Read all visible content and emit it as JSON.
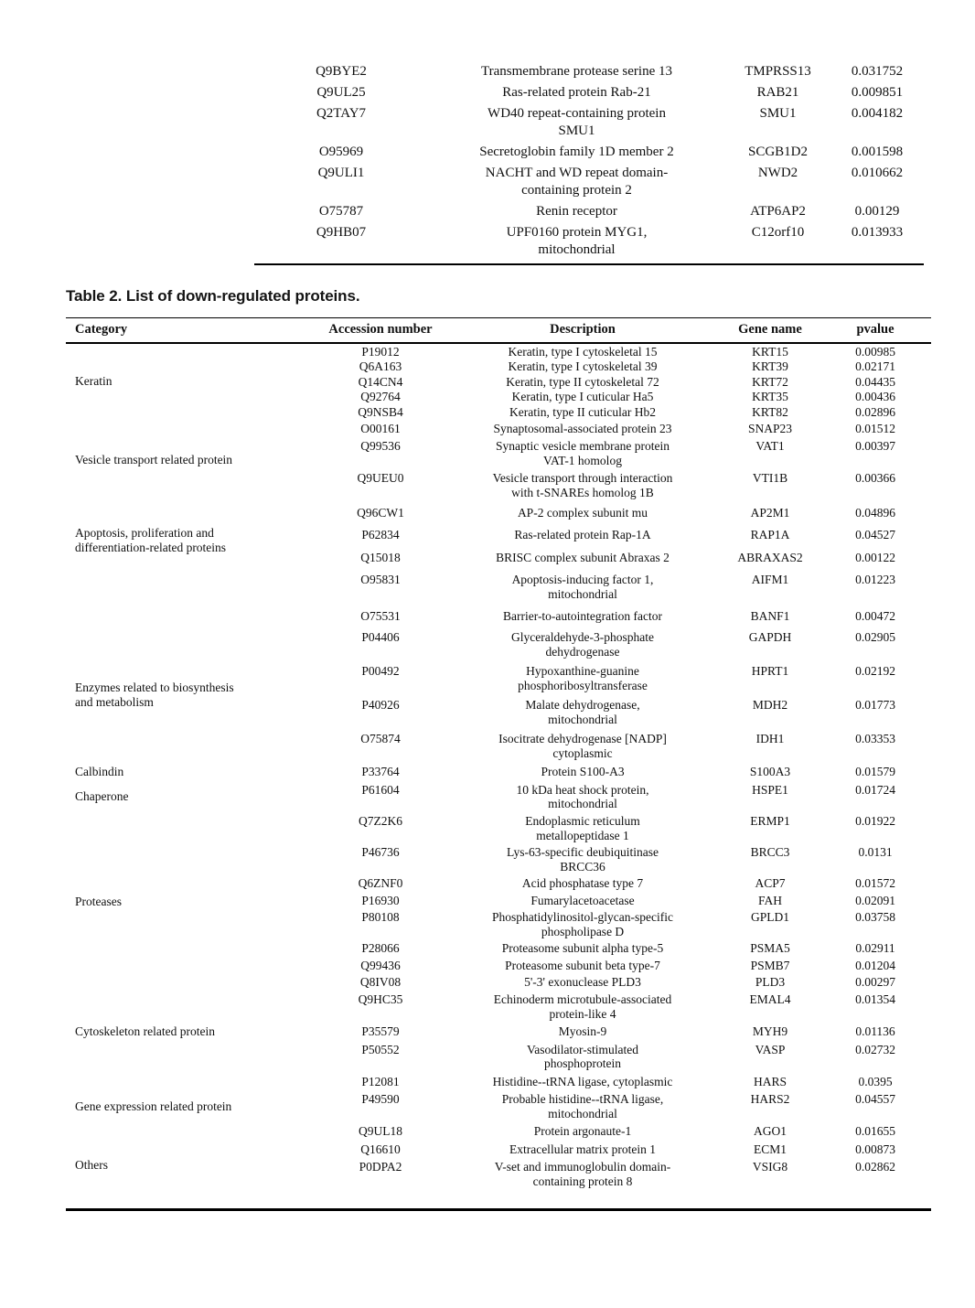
{
  "table1_continuation": {
    "rows": [
      {
        "accession": "Q9BYE2",
        "description": "Transmembrane protease serine 13",
        "gene": "TMPRSS13",
        "pvalue": "0.031752"
      },
      {
        "accession": "Q9UL25",
        "description": "Ras-related protein Rab-21",
        "gene": "RAB21",
        "pvalue": "0.009851"
      },
      {
        "accession": "Q2TAY7",
        "description": "WD40 repeat-containing protein\nSMU1",
        "gene": "SMU1",
        "pvalue": "0.004182"
      },
      {
        "accession": "O95969",
        "description": "Secretoglobin family 1D member 2",
        "gene": "SCGB1D2",
        "pvalue": "0.001598"
      },
      {
        "accession": "Q9ULI1",
        "description": "NACHT and WD repeat domain-\ncontaining protein 2",
        "gene": "NWD2",
        "pvalue": "0.010662"
      },
      {
        "accession": "O75787",
        "description": "Renin receptor",
        "gene": "ATP6AP2",
        "pvalue": "0.00129"
      },
      {
        "accession": "Q9HB07",
        "description": "UPF0160 protein MYG1,\nmitochondrial",
        "gene": "C12orf10",
        "pvalue": "0.013933"
      }
    ]
  },
  "table2": {
    "title": "Table 2. List of down-regulated proteins.",
    "columns": [
      "Category",
      "Accession number",
      "Description",
      "Gene name",
      "pvalue"
    ],
    "groups": [
      {
        "category": "Keratin",
        "rows": [
          {
            "accession": "P19012",
            "description": "Keratin, type I cytoskeletal 15",
            "gene": "KRT15",
            "pvalue": "0.00985"
          },
          {
            "accession": "Q6A163",
            "description": "Keratin, type I cytoskeletal 39",
            "gene": "KRT39",
            "pvalue": "0.02171"
          },
          {
            "accession": "Q14CN4",
            "description": "Keratin, type II cytoskeletal 72",
            "gene": "KRT72",
            "pvalue": "0.04435"
          },
          {
            "accession": "Q92764",
            "description": "Keratin, type I cuticular Ha5",
            "gene": "KRT35",
            "pvalue": "0.00436"
          },
          {
            "accession": "Q9NSB4",
            "description": "Keratin, type II cuticular Hb2",
            "gene": "KRT82",
            "pvalue": "0.02896"
          }
        ]
      },
      {
        "category": "Vesicle transport related protein",
        "rows": [
          {
            "accession": "O00161",
            "description": "Synaptosomal-associated protein 23",
            "gene": "SNAP23",
            "pvalue": "0.01512"
          },
          {
            "accession": "Q99536",
            "description": "Synaptic vesicle membrane protein\nVAT-1 homolog",
            "gene": "VAT1",
            "pvalue": "0.00397"
          },
          {
            "accession": "Q9UEU0",
            "description": "Vesicle transport through interaction\nwith t-SNAREs homolog 1B",
            "gene": "VTI1B",
            "pvalue": "0.00366"
          }
        ]
      },
      {
        "category": "Apoptosis, proliferation and\ndifferentiation-related proteins",
        "rows": [
          {
            "accession": "Q96CW1",
            "description": "AP-2 complex subunit mu",
            "gene": "AP2M1",
            "pvalue": "0.04896"
          },
          {
            "accession": "P62834",
            "description": "Ras-related protein Rap-1A",
            "gene": "RAP1A",
            "pvalue": "0.04527"
          },
          {
            "accession": "Q15018",
            "description": "BRISC complex subunit Abraxas 2",
            "gene": "ABRAXAS2",
            "pvalue": "0.00122"
          },
          {
            "accession": "O95831",
            "description": "Apoptosis-inducing factor 1,\nmitochondrial",
            "gene": "AIFM1",
            "pvalue": "0.01223"
          },
          {
            "accession": "O75531",
            "description": "Barrier-to-autointegration factor",
            "gene": "BANF1",
            "pvalue": "0.00472"
          }
        ]
      },
      {
        "category": "Enzymes related to biosynthesis\nand metabolism",
        "rows": [
          {
            "accession": "P04406",
            "description": "Glyceraldehyde-3-phosphate\ndehydrogenase",
            "gene": "GAPDH",
            "pvalue": "0.02905"
          },
          {
            "accession": "P00492",
            "description": "Hypoxanthine-guanine\nphosphoribosyltransferase",
            "gene": "HPRT1",
            "pvalue": "0.02192"
          },
          {
            "accession": "P40926",
            "description": "Malate dehydrogenase,\nmitochondrial",
            "gene": "MDH2",
            "pvalue": "0.01773"
          },
          {
            "accession": "O75874",
            "description": "Isocitrate dehydrogenase [NADP]\ncytoplasmic",
            "gene": "IDH1",
            "pvalue": "0.03353"
          }
        ]
      },
      {
        "category": "Calbindin",
        "rows": [
          {
            "accession": "P33764",
            "description": "Protein S100-A3",
            "gene": "S100A3",
            "pvalue": "0.01579"
          }
        ]
      },
      {
        "category": "Chaperone",
        "rows": [
          {
            "accession": "P61604",
            "description": "10 kDa heat shock protein,\nmitochondrial",
            "gene": "HSPE1",
            "pvalue": "0.01724"
          }
        ]
      },
      {
        "category": "Proteases",
        "rows": [
          {
            "accession": "Q7Z2K6",
            "description": "Endoplasmic reticulum\nmetallopeptidase 1",
            "gene": "ERMP1",
            "pvalue": "0.01922"
          },
          {
            "accession": "P46736",
            "description": "Lys-63-specific deubiquitinase\nBRCC36",
            "gene": "BRCC3",
            "pvalue": "0.0131"
          },
          {
            "accession": "Q6ZNF0",
            "description": "Acid phosphatase type 7",
            "gene": "ACP7",
            "pvalue": "0.01572"
          },
          {
            "accession": "P16930",
            "description": "Fumarylacetoacetase",
            "gene": "FAH",
            "pvalue": "0.02091"
          },
          {
            "accession": "P80108",
            "description": "Phosphatidylinositol-glycan-specific\nphospholipase D",
            "gene": "GPLD1",
            "pvalue": "0.03758"
          },
          {
            "accession": "P28066",
            "description": "Proteasome subunit alpha type-5",
            "gene": "PSMA5",
            "pvalue": "0.02911"
          },
          {
            "accession": "Q99436",
            "description": "Proteasome subunit beta type-7",
            "gene": "PSMB7",
            "pvalue": "0.01204"
          },
          {
            "accession": "Q8IV08",
            "description": "5'-3' exonuclease PLD3",
            "gene": "PLD3",
            "pvalue": "0.00297"
          }
        ]
      },
      {
        "category": "Cytoskeleton related protein",
        "rows": [
          {
            "accession": "Q9HC35",
            "description": "Echinoderm microtubule-associated\nprotein-like 4",
            "gene": "EMAL4",
            "pvalue": "0.01354"
          },
          {
            "accession": "P35579",
            "description": "Myosin-9",
            "gene": "MYH9",
            "pvalue": "0.01136"
          },
          {
            "accession": "P50552",
            "description": "Vasodilator-stimulated\nphosphoprotein",
            "gene": "VASP",
            "pvalue": "0.02732"
          }
        ]
      },
      {
        "category": "Gene expression related protein",
        "rows": [
          {
            "accession": "P12081",
            "description": "Histidine--tRNA ligase, cytoplasmic",
            "gene": "HARS",
            "pvalue": "0.0395"
          },
          {
            "accession": "P49590",
            "description": "Probable histidine--tRNA ligase,\nmitochondrial",
            "gene": "HARS2",
            "pvalue": "0.04557"
          },
          {
            "accession": "Q9UL18",
            "description": "Protein argonaute-1",
            "gene": "AGO1",
            "pvalue": "0.01655"
          }
        ]
      },
      {
        "category": "Others",
        "rows": [
          {
            "accession": "Q16610",
            "description": "Extracellular matrix protein 1",
            "gene": "ECM1",
            "pvalue": "0.00873"
          },
          {
            "accession": "P0DPA2",
            "description": "V-set and immunoglobulin domain-\ncontaining protein 8",
            "gene": "VSIG8",
            "pvalue": "0.02862"
          }
        ]
      }
    ]
  }
}
